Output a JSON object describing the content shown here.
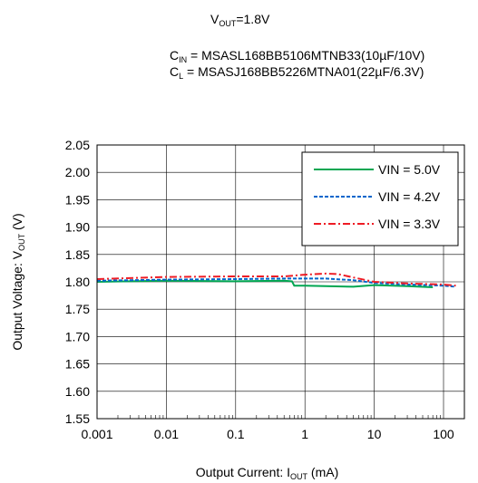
{
  "header": {
    "vout_prefix": "V",
    "vout_sub": "OUT",
    "vout_value": "=1.8V",
    "cin_prefix": "C",
    "cin_sub": "IN",
    "cin_value": " = MSASL168BB5106MTNB33(10µF/10V)",
    "cl_prefix": "C",
    "cl_sub": "L",
    "cl_value": " = MSASJ168BB5226MTNA01(22µF/6.3V)"
  },
  "chart_data": {
    "type": "line",
    "x_scale": "log",
    "xlim": [
      0.001,
      200
    ],
    "ylim": [
      1.55,
      2.05
    ],
    "x_ticks": [
      0.001,
      0.01,
      0.1,
      1,
      10,
      100
    ],
    "x_tick_labels": [
      "0.001",
      "0.01",
      "0.1",
      "1",
      "10",
      "100"
    ],
    "y_ticks": [
      1.55,
      1.6,
      1.65,
      1.7,
      1.75,
      1.8,
      1.85,
      1.9,
      1.95,
      2.0,
      2.05
    ],
    "y_tick_labels": [
      "1.55",
      "1.60",
      "1.65",
      "1.70",
      "1.75",
      "1.80",
      "1.85",
      "1.90",
      "1.95",
      "2.00",
      "2.05"
    ],
    "xlabel": {
      "prefix": "Output Current: I",
      "sub": "OUT",
      "suffix": " (mA)"
    },
    "ylabel": {
      "prefix": "Output Voltage: V",
      "sub": "OUT",
      "suffix": " (V)"
    },
    "grid": true,
    "legend_position": "top-right",
    "series": [
      {
        "name": "VIN = 5.0V",
        "color": "#00a651",
        "dash": "solid",
        "x": [
          0.001,
          0.01,
          0.1,
          0.5,
          0.65,
          0.7,
          1,
          2,
          5,
          10,
          30,
          70
        ],
        "y": [
          1.8,
          1.802,
          1.801,
          1.802,
          1.801,
          1.793,
          1.793,
          1.792,
          1.791,
          1.794,
          1.792,
          1.79
        ]
      },
      {
        "name": "VIN = 4.2V",
        "color": "#0066cc",
        "dash": "dashed",
        "x": [
          0.001,
          0.01,
          0.1,
          0.5,
          1,
          2,
          5,
          10,
          30,
          100,
          150
        ],
        "y": [
          1.802,
          1.804,
          1.805,
          1.806,
          1.806,
          1.806,
          1.803,
          1.798,
          1.795,
          1.793,
          1.791
        ]
      },
      {
        "name": "VIN = 3.3V",
        "color": "#ee1c25",
        "dash": "dashdot",
        "x": [
          0.001,
          0.01,
          0.1,
          0.5,
          1,
          2,
          3,
          5,
          10,
          30,
          100,
          150
        ],
        "y": [
          1.805,
          1.809,
          1.81,
          1.81,
          1.813,
          1.815,
          1.814,
          1.808,
          1.8,
          1.797,
          1.795,
          1.793
        ]
      }
    ]
  }
}
